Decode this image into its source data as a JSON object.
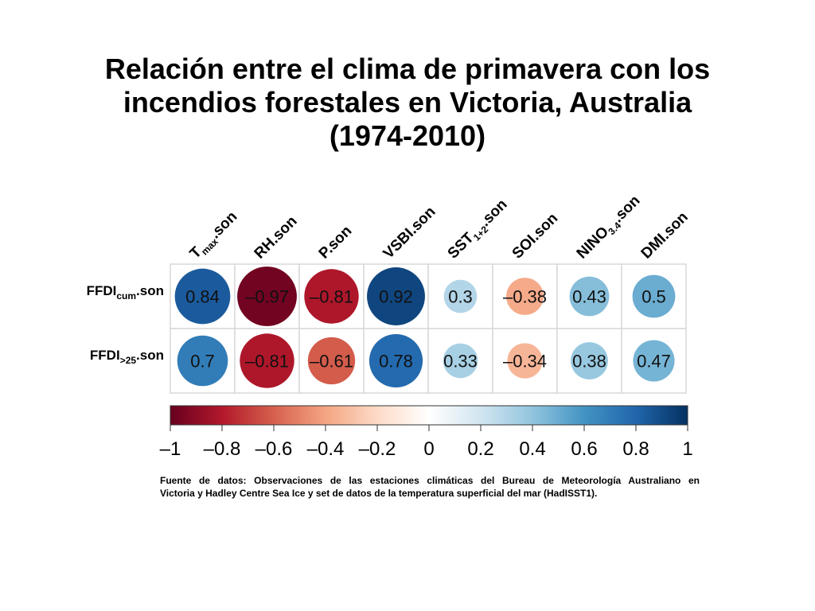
{
  "title": {
    "line1": "Relación entre el clima de primavera con los",
    "line2": "incendios forestales en Victoria, Australia",
    "line3": "(1974-2010)"
  },
  "source_note": {
    "line1": "Fuente de datos: Observaciones de las estaciones climáticas del Bureau de Meteorología Australiano en",
    "line2": "Victoria y Hadley Centre Sea Ice y set de datos de la temperatura superficial del mar (HadISST1)."
  },
  "chart_data": {
    "type": "heatmap",
    "columns": [
      {
        "parts": [
          [
            "T",
            ""
          ],
          [
            "max",
            "sub"
          ],
          [
            ".son",
            ""
          ]
        ]
      },
      {
        "parts": [
          [
            "RH.son",
            ""
          ]
        ]
      },
      {
        "parts": [
          [
            "P.son",
            ""
          ]
        ]
      },
      {
        "parts": [
          [
            "VSBI.son",
            ""
          ]
        ]
      },
      {
        "parts": [
          [
            "SST",
            ""
          ],
          [
            "1+2",
            "sub"
          ],
          [
            ".son",
            ""
          ]
        ]
      },
      {
        "parts": [
          [
            "SOI.son",
            ""
          ]
        ]
      },
      {
        "parts": [
          [
            "NINO",
            ""
          ],
          [
            "3.4",
            "sub"
          ],
          [
            ".son",
            ""
          ]
        ]
      },
      {
        "parts": [
          [
            "DMI.son",
            ""
          ]
        ]
      }
    ],
    "rows": [
      {
        "parts": [
          [
            "FFDI",
            ""
          ],
          [
            "cum",
            "sub"
          ],
          [
            ".son",
            ""
          ]
        ],
        "values": [
          0.84,
          -0.97,
          -0.81,
          0.92,
          0.3,
          -0.38,
          0.43,
          0.5
        ]
      },
      {
        "parts": [
          [
            "FFDI",
            ""
          ],
          [
            ">25",
            "sub"
          ],
          [
            ".son",
            ""
          ]
        ],
        "values": [
          0.7,
          -0.81,
          -0.61,
          0.78,
          0.33,
          -0.34,
          0.38,
          0.47
        ]
      }
    ],
    "value_labels": [
      [
        "0.84",
        "–0.97",
        "–0.81",
        "0.92",
        "0.3",
        "–0.38",
        "0.43",
        "0.5"
      ],
      [
        "0.7",
        "–0.81",
        "–0.61",
        "0.78",
        "0.33",
        "–0.34",
        "0.38",
        "0.47"
      ]
    ],
    "colorbar": {
      "range": [
        -1,
        1
      ],
      "ticks": [
        -1,
        -0.8,
        -0.6,
        -0.4,
        -0.2,
        0,
        0.2,
        0.4,
        0.6,
        0.8,
        1
      ],
      "tick_labels": [
        "–1",
        "–0.8",
        "–0.6",
        "–0.4",
        "–0.2",
        "0",
        "0.2",
        "0.4",
        "0.6",
        "0.8",
        "1"
      ],
      "colors": [
        "#67001f",
        "#b2182b",
        "#d6604d",
        "#f4a582",
        "#fddbc7",
        "#ffffff",
        "#d1e5f0",
        "#92c5de",
        "#4393c3",
        "#2166ac",
        "#053061"
      ]
    }
  }
}
